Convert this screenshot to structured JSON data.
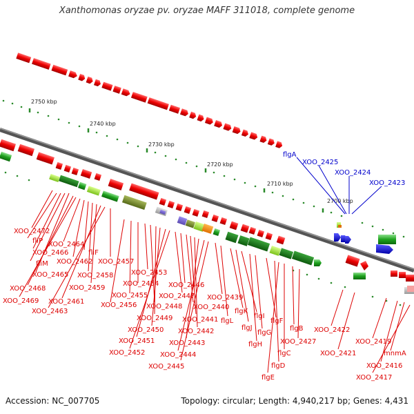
{
  "title": "Xanthomonas oryzae pv. oryzae MAFF 311018, complete genome",
  "footer": {
    "accession": "Accession: NC_007705",
    "summary": "Topology: circular; Length: 4,940,217 bp; Genes: 4,431"
  },
  "scale_labels": [
    "2750 kbp",
    "2740 kbp",
    "2730 kbp",
    "2720 kbp",
    "2710 kbp",
    "2700 kbp"
  ],
  "blue_labels": [
    "flgA",
    "XOO_2425",
    "XOO_2424",
    "XOO_2423"
  ],
  "red_labels": [
    "XOO_2472",
    "fliP",
    "XOO_2466",
    "fliM",
    "XOO_2465",
    "XOO_2468",
    "XOO_2469",
    "XOO_2464",
    "XOO_2462",
    "fliF",
    "XOO_2458",
    "XOO_2459",
    "XOO_2461",
    "XOO_2463",
    "XOO_2457",
    "XOO_2456",
    "XOO_2455",
    "XOO_2454",
    "XOO_2453",
    "XOO_2448",
    "XOO_2449",
    "XOO_2450",
    "XOO_2451",
    "XOO_2452",
    "XOO_2447",
    "XOO_2446",
    "XOO_2441",
    "XOO_2440",
    "XOO_2442",
    "XOO_2443",
    "XOO_2444",
    "XOO_2445",
    "XOO_2439",
    "flgL",
    "flgK",
    "flgJ",
    "flgI",
    "flgH",
    "flgG",
    "flgF",
    "flgD",
    "flgE",
    "flgC",
    "flgB",
    "XOO_2427",
    "XOO_2422",
    "XOO_2421",
    "XOO_2419",
    "mnmA",
    "XOO_2416",
    "XOO_2417"
  ]
}
